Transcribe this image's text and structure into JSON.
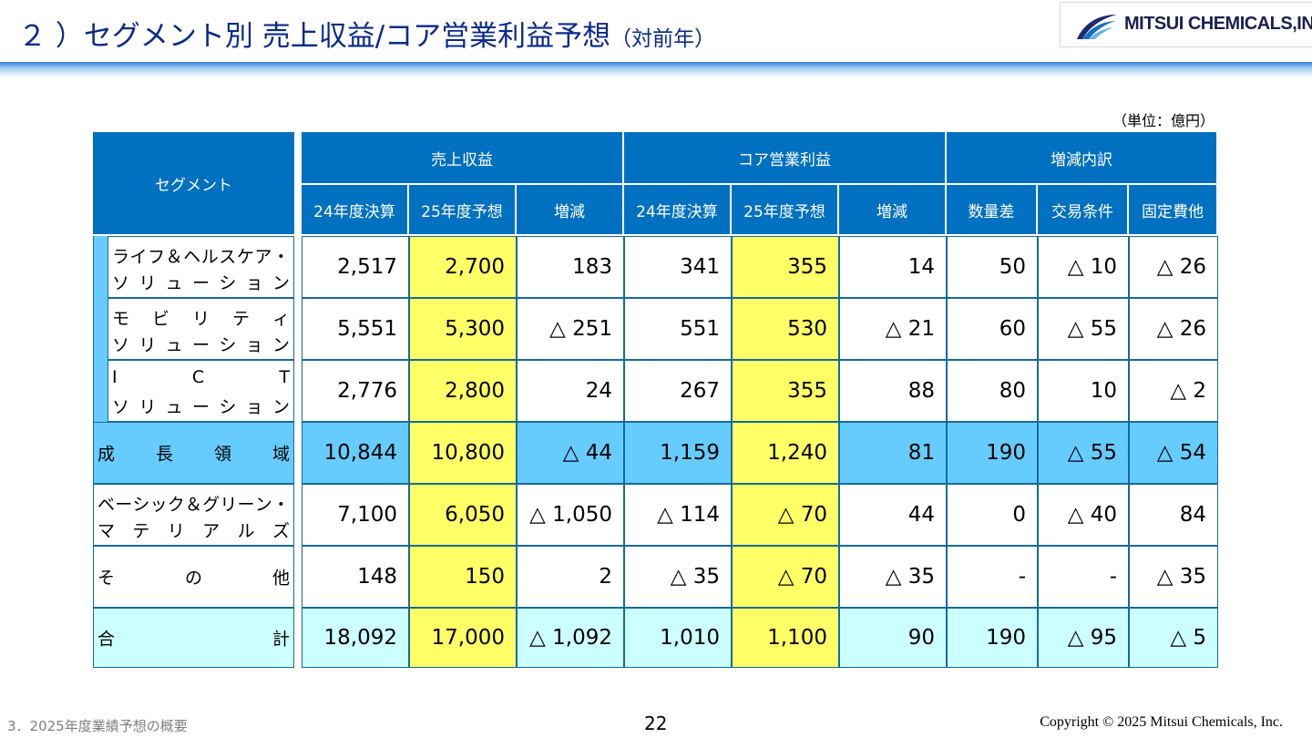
{
  "header": {
    "title": "２ ）セグメント別 売上収益/コア営業利益予想",
    "title_suffix": "（対前年）",
    "logo_text": "MITSUI CHEMICALS,INC."
  },
  "unit_label": "（単位：億円）",
  "table": {
    "segment_header": "セグメント",
    "groups": [
      "売上収益",
      "コア営業利益",
      "増減内訳"
    ],
    "columns": [
      "24年度決算",
      "25年度予想",
      "増減",
      "24年度決算",
      "25年度予想",
      "増減",
      "数量差",
      "交易条件",
      "固定費他"
    ],
    "rows": [
      {
        "label_lines": [
          "ライフ＆ヘルスケア・",
          "ソリューション"
        ],
        "values": [
          "2,517",
          "2,700",
          "183",
          "341",
          "355",
          "14",
          "50",
          "△ 10",
          "△ 26"
        ]
      },
      {
        "label_lines": [
          "モビリティ",
          "ソリューション"
        ],
        "values": [
          "5,551",
          "5,300",
          "△ 251",
          "551",
          "530",
          "△ 21",
          "60",
          "△ 55",
          "△ 26"
        ]
      },
      {
        "label_lines": [
          "ICT",
          "ソリューション"
        ],
        "values": [
          "2,776",
          "2,800",
          "24",
          "267",
          "355",
          "88",
          "80",
          "10",
          "△ 2"
        ]
      },
      {
        "label_lines": [
          "成長領域"
        ],
        "values": [
          "10,844",
          "10,800",
          "△ 44",
          "1,159",
          "1,240",
          "81",
          "190",
          "△ 55",
          "△ 54"
        ]
      },
      {
        "label_lines": [
          "ベーシック＆グリーン・",
          "マテリアルズ"
        ],
        "values": [
          "7,100",
          "6,050",
          "△ 1,050",
          "△ 114",
          "△ 70",
          "44",
          "0",
          "△ 40",
          "84"
        ]
      },
      {
        "label_lines": [
          "その他"
        ],
        "values": [
          "148",
          "150",
          "2",
          "△ 35",
          "△ 70",
          "△ 35",
          "-",
          "-",
          "△ 35"
        ]
      },
      {
        "label_lines": [
          "合計"
        ],
        "values": [
          "18,092",
          "17,000",
          "△ 1,092",
          "1,010",
          "1,100",
          "90",
          "190",
          "△ 95",
          "△ 5"
        ]
      }
    ]
  },
  "colors": {
    "header_blue": "#0070c0",
    "forecast_yellow": "#ffff66",
    "growth_row": "#66ccff",
    "total_row": "#ccffff",
    "title_navy": "#0a2a8a"
  },
  "footer": {
    "section": "3．2025年度業績予想の概要",
    "page": "22",
    "copyright": "Copyright © 2025 Mitsui Chemicals, Inc."
  }
}
